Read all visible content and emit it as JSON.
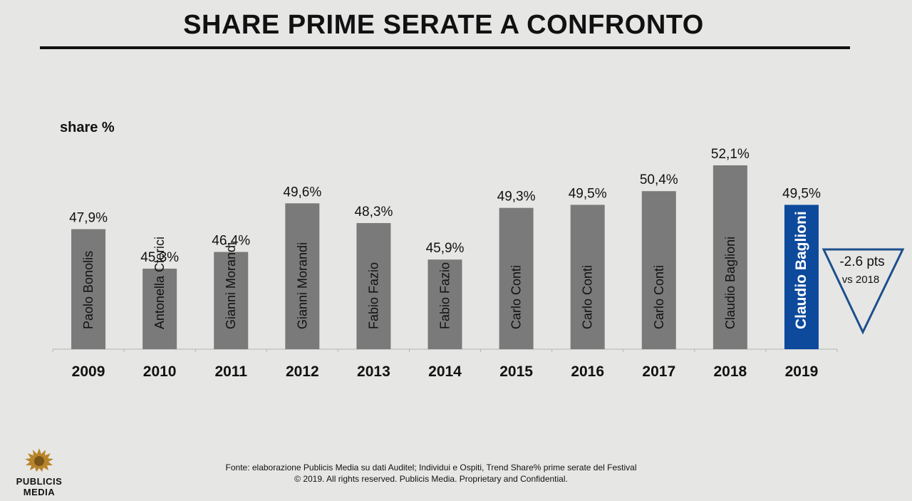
{
  "header": {
    "title": "SHARE PRIME SERATE A CONFRONTO"
  },
  "chart_data": {
    "type": "bar",
    "title": "SHARE PRIME SERATE A CONFRONTO",
    "ylabel": "share %",
    "xlabel": "",
    "ylim": [
      0,
      53
    ],
    "categories": [
      "2009",
      "2010",
      "2011",
      "2012",
      "2013",
      "2014",
      "2015",
      "2016",
      "2017",
      "2018",
      "2019"
    ],
    "values": [
      47.9,
      45.3,
      46.4,
      49.6,
      48.3,
      45.9,
      49.3,
      49.5,
      50.4,
      52.1,
      49.5
    ],
    "value_labels": [
      "47,9%",
      "45,3%",
      "46,4%",
      "49,6%",
      "48,3%",
      "45,9%",
      "49,3%",
      "49,5%",
      "50,4%",
      "52,1%",
      "49,5%"
    ],
    "bar_labels": [
      "Paolo Bonolis",
      "Antonella Clerici",
      "Gianni Morandi",
      "Gianni Morandi",
      "Fabio Fazio",
      "Fabio Fazio",
      "Carlo Conti",
      "Carlo Conti",
      "Carlo Conti",
      "Claudio Baglioni",
      "Claudio Baglioni"
    ],
    "highlight_index": 10,
    "colors": {
      "bar": "#7a7a7a",
      "highlight": "#0d4a9c",
      "bar_text": "#111111",
      "highlight_text": "#ffffff"
    },
    "grid": false,
    "annotation": {
      "line1": "-2.6 pts",
      "line2": "vs 2018",
      "shape": "down-triangle",
      "color": "#1d4f8c"
    }
  },
  "footer": {
    "line1": "Fonte: elaborazione Publicis Media su dati Auditel; Individui e Ospiti, Trend Share% prime serate del Festival",
    "line2": "© 2019. All rights reserved. Publicis Media. Proprietary and Confidential."
  },
  "logo": {
    "line1": "PUBLICIS",
    "line2": "MEDIA",
    "icon": "lion-head-icon"
  }
}
